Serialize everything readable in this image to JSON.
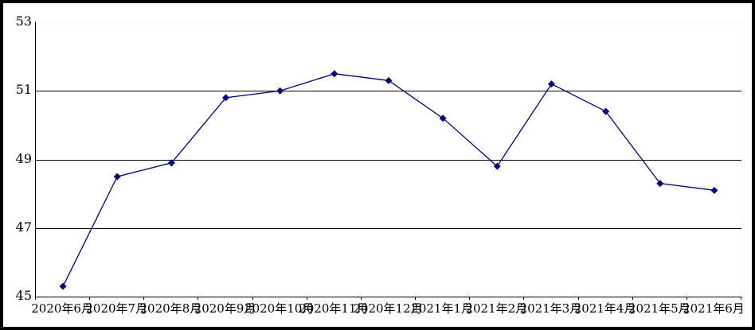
{
  "chart_data": {
    "type": "line",
    "title": "",
    "xlabel": "",
    "ylabel": "",
    "categories": [
      "2020年6月",
      "2020年7月",
      "2020年8月",
      "2020年9月",
      "2020年10月",
      "2020年11月",
      "2020年12月",
      "2021年1月",
      "2021年2月",
      "2021年3月",
      "2021年4月",
      "2021年5月",
      "2021年6月"
    ],
    "values": [
      45.3,
      48.5,
      48.9,
      50.8,
      51.0,
      51.5,
      51.3,
      50.2,
      48.8,
      51.2,
      50.4,
      48.3,
      48.1
    ],
    "ylim": [
      45,
      53
    ],
    "yticks": [
      45,
      47,
      49,
      51,
      53
    ],
    "grid": "horizontal-black-gridlines",
    "legend": "none",
    "marker": "diamond",
    "colors": {
      "line": "#000080",
      "marker": "#000080",
      "gridline": "#000000",
      "axis": "#000000",
      "plot_border_top_right": "#ffffcc",
      "outer_frame": "#000000",
      "background": "#ffffff",
      "text": "#000000"
    }
  }
}
